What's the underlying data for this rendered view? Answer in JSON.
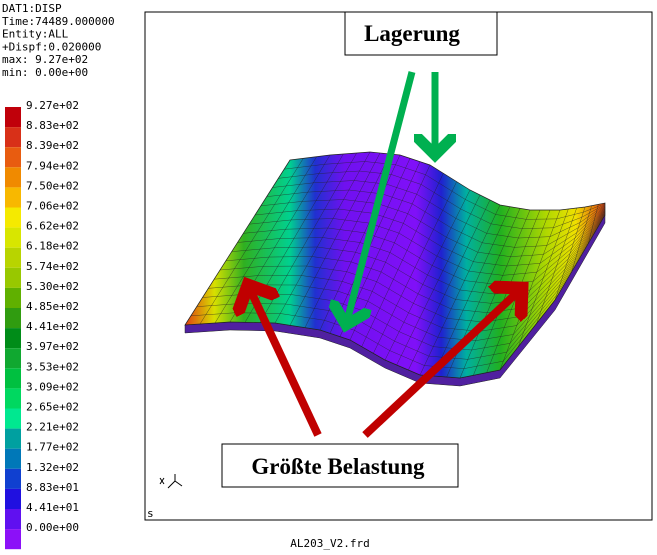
{
  "header": {
    "lines": [
      "DAT1:DISP",
      "Time:74489.000000",
      "Entity:ALL",
      "+Dispf:0.020000",
      "max: 9.27e+02",
      "min: 0.00e+00"
    ]
  },
  "legend": {
    "entries": [
      {
        "label": "9.27e+02",
        "color": "#c0000a"
      },
      {
        "label": "8.83e+02",
        "color": "#d83018"
      },
      {
        "label": "8.39e+02",
        "color": "#e85c10"
      },
      {
        "label": "7.94e+02",
        "color": "#f08a00"
      },
      {
        "label": "7.50e+02",
        "color": "#f8b800"
      },
      {
        "label": "7.06e+02",
        "color": "#f5ea00"
      },
      {
        "label": "6.62e+02",
        "color": "#d8e600"
      },
      {
        "label": "6.18e+02",
        "color": "#b8d400"
      },
      {
        "label": "5.74e+02",
        "color": "#98c800"
      },
      {
        "label": "5.30e+02",
        "color": "#60b000"
      },
      {
        "label": "4.85e+02",
        "color": "#309c10"
      },
      {
        "label": "4.41e+02",
        "color": "#008c18"
      },
      {
        "label": "3.97e+02",
        "color": "#10a830"
      },
      {
        "label": "3.53e+02",
        "color": "#00c040"
      },
      {
        "label": "3.09e+02",
        "color": "#00d860"
      },
      {
        "label": "2.65e+02",
        "color": "#00e890"
      },
      {
        "label": "2.21e+02",
        "color": "#00a0a0"
      },
      {
        "label": "1.77e+02",
        "color": "#0078b8"
      },
      {
        "label": "1.32e+02",
        "color": "#1040d0"
      },
      {
        "label": "8.83e+01",
        "color": "#2010e0"
      },
      {
        "label": "4.41e+01",
        "color": "#6010f0"
      },
      {
        "label": "0.00e+00",
        "color": "#8c10f8"
      }
    ]
  },
  "viewport": {
    "annotations": {
      "top": "Lagerung",
      "bottom": "Größte Belastung"
    },
    "corner_label": "s"
  },
  "footer": {
    "filename": "AL203_V2.frd"
  }
}
